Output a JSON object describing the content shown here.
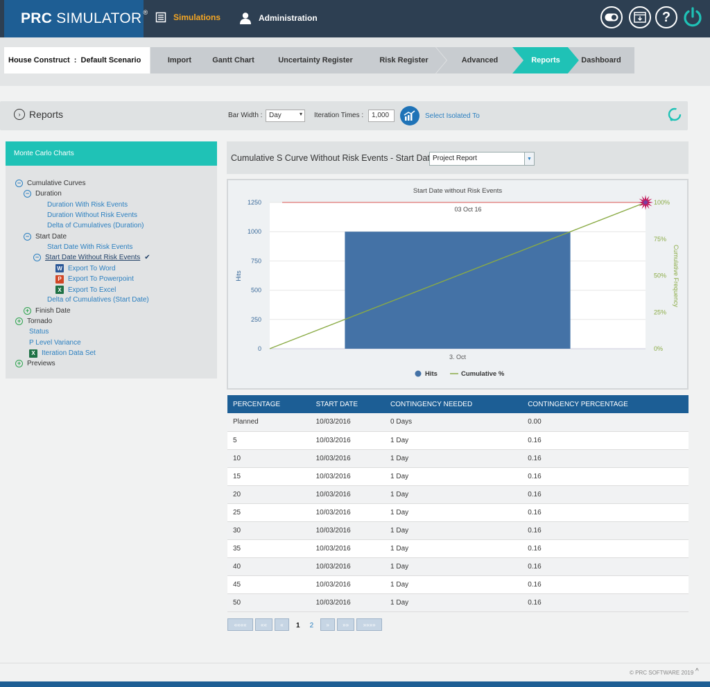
{
  "app": {
    "logo_bold": "PRC",
    "logo_text": "SIMULATOR",
    "logo_reg": "®"
  },
  "nav": {
    "simulations": "Simulations",
    "administration": "Administration"
  },
  "header_icons": [
    "toggle-icon",
    "download-icon",
    "help-icon",
    "power-icon"
  ],
  "help_glyph": "?",
  "project": {
    "label": "House Construct  :  Default Scenario"
  },
  "steps": [
    "Import",
    "Gantt Chart",
    "Uncertainty Register",
    "Risk Register",
    "Advanced",
    "Reports",
    "Dashboard"
  ],
  "active_step": "Reports",
  "toolbar": {
    "title": "Reports",
    "bar_width_label": "Bar Width :",
    "bar_width_value": "Day",
    "iteration_label": "Iteration Times :",
    "iteration_value": "1,000",
    "select_isolated": "Select Isolated To"
  },
  "sidebar": {
    "header": "Monte Carlo Charts",
    "items": [
      {
        "label": "Cumulative Curves",
        "toggle": "minus",
        "style": "plain"
      },
      {
        "label": "Duration",
        "toggle": "minus",
        "style": "plain"
      },
      {
        "label": "Duration With Risk Events",
        "style": "link"
      },
      {
        "label": "Duration Without Risk Events",
        "style": "link"
      },
      {
        "label": "Delta of Cumulatives (Duration)",
        "style": "link"
      },
      {
        "label": "Start Date",
        "toggle": "minus",
        "style": "plain"
      },
      {
        "label": "Start Date With Risk Events",
        "style": "link"
      },
      {
        "label": "Start Date Without Risk Events",
        "toggle": "minus",
        "style": "selected"
      },
      {
        "label": "Export To Word",
        "file": "W",
        "style": "link"
      },
      {
        "label": "Export To Powerpoint",
        "file": "P",
        "style": "link"
      },
      {
        "label": "Export To Excel",
        "file": "X",
        "style": "link"
      },
      {
        "label": "Delta of Cumulatives (Start Date)",
        "style": "link"
      },
      {
        "label": "Finish Date",
        "toggle": "plus",
        "style": "plain"
      },
      {
        "label": "Tornado",
        "toggle": "plus",
        "style": "plain"
      },
      {
        "label": "Status",
        "style": "link"
      },
      {
        "label": "P Level Variance",
        "style": "link"
      },
      {
        "label": "Iteration Data Set",
        "file": "X",
        "style": "link"
      },
      {
        "label": "Previews",
        "toggle": "plus",
        "style": "plain"
      }
    ],
    "checkmark": "✔"
  },
  "chart_panel": {
    "title": "Cumulative S Curve Without Risk Events - Start Date",
    "report_select": "Project Report"
  },
  "chart_data": {
    "type": "bar",
    "title": "Start Date without Risk Events",
    "categories": [
      "3. Oct"
    ],
    "series": [
      {
        "name": "Hits",
        "type": "bar",
        "values": [
          1000
        ]
      },
      {
        "name": "Cumulative %",
        "type": "line",
        "x": [
          0,
          1
        ],
        "values": [
          0,
          100
        ]
      }
    ],
    "ylabel": "Hits",
    "y2label": "Cumulative Frequency",
    "ylim": [
      0,
      1250
    ],
    "y2lim": [
      0,
      100
    ],
    "yticks": [
      "0",
      "250",
      "500",
      "750",
      "1000",
      "1250"
    ],
    "y2ticks": [
      "0%",
      "25%",
      "50%",
      "75%",
      "100%"
    ],
    "plot_line": {
      "label": "03 Oct 16",
      "value": 1250
    },
    "legend_position": "bottom",
    "colors": {
      "hits": "#4472a6",
      "cumulative": "#8aab45",
      "plot_line": "#d9534f",
      "marker": "#c2185b"
    }
  },
  "table": {
    "headers": [
      "PERCENTAGE",
      "START DATE",
      "CONTINGENCY NEEDED",
      "CONTINGENCY PERCENTAGE"
    ],
    "rows": [
      [
        "Planned",
        "10/03/2016",
        "0 Days",
        "0.00"
      ],
      [
        "5",
        "10/03/2016",
        "1 Day",
        "0.16"
      ],
      [
        "10",
        "10/03/2016",
        "1 Day",
        "0.16"
      ],
      [
        "15",
        "10/03/2016",
        "1 Day",
        "0.16"
      ],
      [
        "20",
        "10/03/2016",
        "1 Day",
        "0.16"
      ],
      [
        "25",
        "10/03/2016",
        "1 Day",
        "0.16"
      ],
      [
        "30",
        "10/03/2016",
        "1 Day",
        "0.16"
      ],
      [
        "35",
        "10/03/2016",
        "1 Day",
        "0.16"
      ],
      [
        "40",
        "10/03/2016",
        "1 Day",
        "0.16"
      ],
      [
        "45",
        "10/03/2016",
        "1 Day",
        "0.16"
      ],
      [
        "50",
        "10/03/2016",
        "1 Day",
        "0.16"
      ]
    ]
  },
  "pager": {
    "first": "««««",
    "prev2": "««",
    "prev": "«",
    "pages": [
      "1",
      "2"
    ],
    "current": "1",
    "next": "»",
    "next2": "»»",
    "last": "»»»»"
  },
  "footer": {
    "copyright": "© PRC SOFTWARE 2019",
    "up": "^"
  },
  "colors": {
    "accent": "#1fc2b6",
    "primary": "#1c5e95",
    "nav_active": "#f5a623",
    "topbar": "#2d3f52"
  }
}
